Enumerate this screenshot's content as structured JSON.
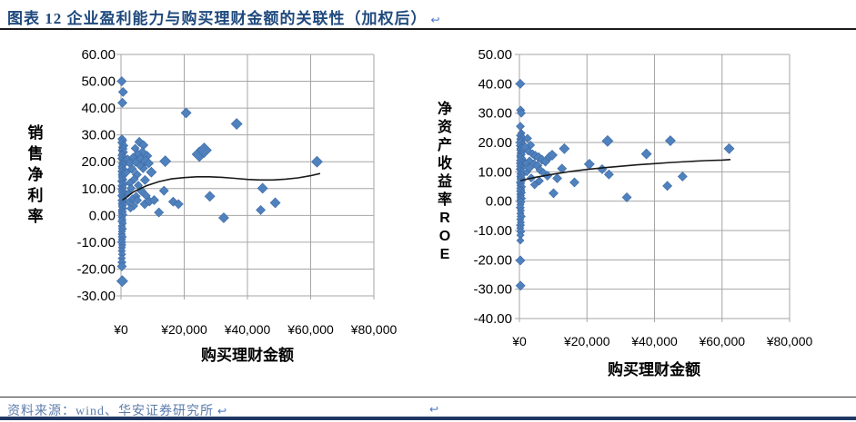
{
  "header": {
    "title": "图表 12  企业盈利能力与购买理财金额的关联性（加权后）",
    "pilcrow": "↩"
  },
  "footer": {
    "source": "资料来源：wind、华安证券研究所",
    "pilcrow": "↩",
    "stray_pilcrow": "↩"
  },
  "colors": {
    "title_text": "#1F497D",
    "source_text": "#5B7BAB",
    "pilcrow": "#4472C4",
    "marker_fill": "#4F81BD",
    "marker_edge": "#3C69A5",
    "gridline": "#A6A6A6",
    "axis_line": "#A6A6A6",
    "axis_text": "#000000",
    "trend_line": "#1A1A1A",
    "top_rule": "#1A1A1A",
    "footer_rule": "#333333",
    "bottom_bar": "#1F3864"
  },
  "chart_data": [
    {
      "type": "scatter",
      "title": "",
      "xlabel": "购买理财金额",
      "ylabel": "销售净利率",
      "xlim": [
        0,
        80000
      ],
      "ylim": [
        -30,
        60
      ],
      "grid": true,
      "legend": "none",
      "xticks": [
        0,
        20000,
        40000,
        60000,
        80000
      ],
      "xtick_labels": [
        "¥0",
        "¥20,000",
        "¥40,000",
        "¥60,000",
        "¥80,000"
      ],
      "yticks": [
        60,
        50,
        40,
        30,
        20,
        10,
        0,
        -10,
        -20,
        -30
      ],
      "ytick_labels": [
        "60.00",
        "50.00",
        "40.00",
        "30.00",
        "20.00",
        "10.00",
        "0.00",
        "-10.00",
        "-20.00",
        "-30.00"
      ],
      "points": [
        [
          250,
          50,
          10
        ],
        [
          650,
          46,
          10
        ],
        [
          450,
          42,
          10
        ],
        [
          300,
          28.5,
          9
        ],
        [
          700,
          28,
          8
        ],
        [
          250,
          27.2,
          9
        ],
        [
          550,
          26.5,
          8
        ],
        [
          900,
          26,
          9
        ],
        [
          350,
          25.4,
          8
        ],
        [
          650,
          24.8,
          9
        ],
        [
          250,
          24.2,
          8
        ],
        [
          800,
          23.6,
          9
        ],
        [
          450,
          23,
          8
        ],
        [
          300,
          22.4,
          9
        ],
        [
          700,
          21.8,
          8
        ],
        [
          250,
          21.2,
          9
        ],
        [
          550,
          20.6,
          8
        ],
        [
          1000,
          20,
          10
        ],
        [
          350,
          19.4,
          8
        ],
        [
          650,
          18.8,
          9
        ],
        [
          250,
          18.2,
          8
        ],
        [
          450,
          17.6,
          9
        ],
        [
          850,
          17,
          8
        ],
        [
          300,
          16.4,
          9
        ],
        [
          600,
          15.8,
          8
        ],
        [
          250,
          15.2,
          8
        ],
        [
          500,
          14.6,
          9
        ],
        [
          350,
          14,
          8
        ],
        [
          750,
          13.4,
          8
        ],
        [
          250,
          12.8,
          9
        ],
        [
          450,
          12.2,
          8
        ],
        [
          900,
          11.6,
          8
        ],
        [
          300,
          11,
          9
        ],
        [
          600,
          10.4,
          8
        ],
        [
          250,
          9.8,
          8
        ],
        [
          500,
          9.2,
          9
        ],
        [
          350,
          8.6,
          8
        ],
        [
          700,
          8,
          8
        ],
        [
          250,
          7.4,
          9
        ],
        [
          450,
          6.8,
          8
        ],
        [
          800,
          6.2,
          8
        ],
        [
          300,
          5.6,
          9
        ],
        [
          600,
          5,
          8
        ],
        [
          250,
          4.4,
          8
        ],
        [
          500,
          3.8,
          9
        ],
        [
          350,
          3.2,
          8
        ],
        [
          700,
          2.6,
          8
        ],
        [
          250,
          2,
          8
        ],
        [
          450,
          1.4,
          9
        ],
        [
          300,
          0.8,
          8
        ],
        [
          600,
          0.2,
          9
        ],
        [
          250,
          -0.6,
          8
        ],
        [
          450,
          -1.4,
          8
        ],
        [
          300,
          -2.2,
          9
        ],
        [
          550,
          -3,
          8
        ],
        [
          250,
          -4,
          8
        ],
        [
          450,
          -5,
          9
        ],
        [
          300,
          -6,
          8
        ],
        [
          250,
          -7,
          8
        ],
        [
          400,
          -8,
          9
        ],
        [
          300,
          -9,
          8
        ],
        [
          250,
          -10,
          9
        ],
        [
          400,
          -11,
          8
        ],
        [
          300,
          -12,
          8
        ],
        [
          250,
          -13.2,
          8
        ],
        [
          350,
          -14.5,
          8
        ],
        [
          250,
          -16,
          8
        ],
        [
          300,
          -17.5,
          9
        ],
        [
          280,
          -19,
          10
        ],
        [
          400,
          -24.5,
          12
        ],
        [
          2100,
          21,
          9
        ],
        [
          2700,
          19.5,
          9
        ],
        [
          3500,
          17.3,
          10
        ],
        [
          1800,
          16,
          8
        ],
        [
          5000,
          15.2,
          10
        ],
        [
          7000,
          17.6,
          10
        ],
        [
          9600,
          16.1,
          11
        ],
        [
          4200,
          13.5,
          9
        ],
        [
          7600,
          13.2,
          10
        ],
        [
          2800,
          12.1,
          9
        ],
        [
          5500,
          11.2,
          9
        ],
        [
          3200,
          10.1,
          9
        ],
        [
          6500,
          9.1,
          10
        ],
        [
          2200,
          8.1,
          8
        ],
        [
          4800,
          7.1,
          9
        ],
        [
          8000,
          7.3,
          9
        ],
        [
          3600,
          6.1,
          9
        ],
        [
          5200,
          5.6,
          9
        ],
        [
          2400,
          4.9,
          8
        ],
        [
          7500,
          4.2,
          10
        ],
        [
          9000,
          5.2,
          10
        ],
        [
          10500,
          5.7,
          10
        ],
        [
          4000,
          3.5,
          9
        ],
        [
          3000,
          2.6,
          8
        ],
        [
          12000,
          1.1,
          10
        ],
        [
          5800,
          27.4,
          10
        ],
        [
          7100,
          26.2,
          10
        ],
        [
          4500,
          25,
          9
        ],
        [
          6800,
          23.6,
          10
        ],
        [
          8300,
          22.2,
          10
        ],
        [
          3800,
          21.6,
          9
        ],
        [
          5300,
          23,
          9
        ],
        [
          6200,
          21,
          11
        ],
        [
          7800,
          20.3,
          11
        ],
        [
          8800,
          19.4,
          10
        ],
        [
          6000,
          18.6,
          9
        ],
        [
          4600,
          19.8,
          9
        ],
        [
          14000,
          20.2,
          12
        ],
        [
          13600,
          9.2,
          10
        ],
        [
          16500,
          5.1,
          10
        ],
        [
          18200,
          4.2,
          10
        ],
        [
          20600,
          38.2,
          11
        ],
        [
          24800,
          22.8,
          16
        ],
        [
          26300,
          24.3,
          16
        ],
        [
          28100,
          7.1,
          11
        ],
        [
          32500,
          -0.9,
          11
        ],
        [
          36600,
          34.1,
          12
        ],
        [
          44800,
          10.1,
          11
        ],
        [
          44200,
          2,
          10
        ],
        [
          48800,
          4.7,
          11
        ],
        [
          62000,
          20,
          12
        ]
      ],
      "trend": [
        [
          500,
          5.7
        ],
        [
          4000,
          8.8
        ],
        [
          8000,
          11.0
        ],
        [
          12000,
          12.6
        ],
        [
          16000,
          13.6
        ],
        [
          20000,
          14.1
        ],
        [
          24000,
          14.4
        ],
        [
          28000,
          14.4
        ],
        [
          32000,
          14.2
        ],
        [
          36000,
          13.8
        ],
        [
          40000,
          13.4
        ],
        [
          44000,
          13.2
        ],
        [
          48000,
          13.2
        ],
        [
          52000,
          13.5
        ],
        [
          56000,
          14.0
        ],
        [
          60000,
          14.8
        ],
        [
          63000,
          15.6
        ]
      ]
    },
    {
      "type": "scatter",
      "title": "",
      "xlabel": "购买理财金额",
      "ylabel": "净资产收益率ROE",
      "xlim": [
        0,
        80000
      ],
      "ylim": [
        -40,
        50
      ],
      "grid": true,
      "legend": "none",
      "xticks": [
        0,
        20000,
        40000,
        60000,
        80000
      ],
      "xtick_labels": [
        "¥0",
        "¥20,000",
        "¥40,000",
        "¥60,000",
        "¥80,000"
      ],
      "yticks": [
        50,
        40,
        30,
        20,
        10,
        0,
        -10,
        -20,
        -30,
        -40
      ],
      "ytick_labels": [
        "50.00",
        "40.00",
        "30.00",
        "20.00",
        "10.00",
        "0.00",
        "-10.00",
        "-20.00",
        "-30.00",
        "-40.00"
      ],
      "points": [
        [
          250,
          40,
          10
        ],
        [
          350,
          31,
          9
        ],
        [
          550,
          30,
          9
        ],
        [
          280,
          25.5,
          9
        ],
        [
          600,
          23.2,
          8
        ],
        [
          300,
          22.4,
          9
        ],
        [
          700,
          21.8,
          8
        ],
        [
          250,
          21.2,
          8
        ],
        [
          550,
          20.6,
          9
        ],
        [
          320,
          20,
          10
        ],
        [
          800,
          19.4,
          8
        ],
        [
          250,
          18.9,
          9
        ],
        [
          600,
          18.4,
          8
        ],
        [
          420,
          17.9,
          9
        ],
        [
          260,
          17.4,
          8
        ],
        [
          700,
          16.9,
          9
        ],
        [
          330,
          16.4,
          8
        ],
        [
          540,
          15.9,
          9
        ],
        [
          250,
          15.4,
          8
        ],
        [
          430,
          14.9,
          9
        ],
        [
          880,
          14.4,
          8
        ],
        [
          300,
          13.9,
          9
        ],
        [
          620,
          13.4,
          8
        ],
        [
          250,
          12.9,
          9
        ],
        [
          520,
          12.4,
          8
        ],
        [
          330,
          11.9,
          9
        ],
        [
          720,
          11.4,
          8
        ],
        [
          250,
          10.9,
          9
        ],
        [
          430,
          10.4,
          8
        ],
        [
          800,
          9.9,
          9
        ],
        [
          300,
          9.4,
          8
        ],
        [
          610,
          8.9,
          9
        ],
        [
          250,
          8.4,
          8
        ],
        [
          520,
          7.9,
          9
        ],
        [
          330,
          7.4,
          8
        ],
        [
          700,
          6.9,
          8
        ],
        [
          250,
          6.4,
          9
        ],
        [
          430,
          5.9,
          8
        ],
        [
          310,
          5.4,
          8
        ],
        [
          600,
          4.9,
          9
        ],
        [
          250,
          4.4,
          8
        ],
        [
          510,
          3.9,
          8
        ],
        [
          330,
          3.4,
          9
        ],
        [
          700,
          2.9,
          8
        ],
        [
          250,
          2.4,
          8
        ],
        [
          420,
          1.9,
          8
        ],
        [
          310,
          1.4,
          8
        ],
        [
          600,
          0.9,
          9
        ],
        [
          250,
          0.4,
          8
        ],
        [
          420,
          -0.3,
          9
        ],
        [
          300,
          -1.2,
          8
        ],
        [
          250,
          -2.2,
          9
        ],
        [
          420,
          -3.2,
          8
        ],
        [
          300,
          -4.2,
          8
        ],
        [
          520,
          -5.2,
          9
        ],
        [
          250,
          -6.2,
          8
        ],
        [
          420,
          -7.2,
          8
        ],
        [
          300,
          -8.2,
          9
        ],
        [
          250,
          -9.2,
          8
        ],
        [
          400,
          -10.3,
          9
        ],
        [
          300,
          -11.6,
          8
        ],
        [
          270,
          -13.4,
          8
        ],
        [
          280,
          -20.2,
          10
        ],
        [
          320,
          -28.8,
          10
        ],
        [
          2400,
          21.4,
          9
        ],
        [
          3300,
          19.1,
          9
        ],
        [
          2600,
          17.1,
          9
        ],
        [
          3900,
          16.1,
          9
        ],
        [
          4700,
          15.5,
          10
        ],
        [
          5700,
          15,
          10
        ],
        [
          3000,
          13.7,
          9
        ],
        [
          4300,
          12.7,
          9
        ],
        [
          5300,
          12.1,
          10
        ],
        [
          6700,
          14.1,
          10
        ],
        [
          7700,
          13.5,
          10
        ],
        [
          8900,
          15.1,
          10
        ],
        [
          6100,
          10.6,
          9
        ],
        [
          7100,
          9.7,
          9
        ],
        [
          8300,
          8.7,
          10
        ],
        [
          9700,
          15.7,
          11
        ],
        [
          11200,
          7.8,
          10
        ],
        [
          10100,
          2.7,
          10
        ],
        [
          4500,
          5.6,
          9
        ],
        [
          3500,
          7.9,
          9
        ],
        [
          2200,
          9.9,
          8
        ],
        [
          5900,
          6.9,
          9
        ],
        [
          12600,
          11.1,
          10
        ],
        [
          2900,
          11.2,
          9
        ],
        [
          1900,
          12.9,
          8
        ],
        [
          1700,
          18.5,
          9
        ],
        [
          13300,
          17.9,
          11
        ],
        [
          16300,
          6.4,
          10
        ],
        [
          20700,
          12.6,
          11
        ],
        [
          24500,
          10.9,
          10
        ],
        [
          26100,
          20.5,
          12
        ],
        [
          26500,
          9.1,
          10
        ],
        [
          31800,
          1.3,
          10
        ],
        [
          37600,
          16.1,
          11
        ],
        [
          43800,
          5.2,
          10
        ],
        [
          44700,
          20.6,
          11
        ],
        [
          48300,
          8.4,
          10
        ],
        [
          62100,
          17.9,
          11
        ]
      ],
      "trend": [
        [
          300,
          7.0
        ],
        [
          5000,
          8.2
        ],
        [
          10000,
          9.2
        ],
        [
          15000,
          10.1
        ],
        [
          20000,
          10.8
        ],
        [
          25000,
          11.4
        ],
        [
          30000,
          11.9
        ],
        [
          35000,
          12.4
        ],
        [
          40000,
          12.8
        ],
        [
          45000,
          13.2
        ],
        [
          50000,
          13.5
        ],
        [
          55000,
          13.8
        ],
        [
          60000,
          14.0
        ],
        [
          62500,
          14.2
        ]
      ]
    }
  ]
}
